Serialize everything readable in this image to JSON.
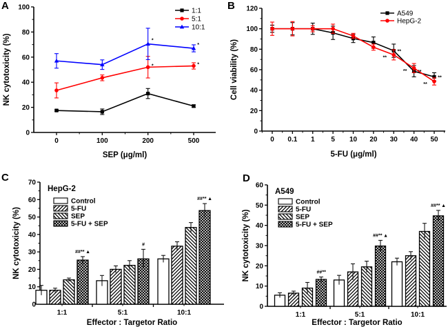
{
  "chart_data": [
    {
      "panel": "A",
      "type": "line",
      "title": "",
      "xlabel": "SEP (μg/ml)",
      "ylabel": "NK cytotoxicity (%)",
      "categories": [
        "0",
        "100",
        "200",
        "500"
      ],
      "ylim": [
        0,
        100
      ],
      "yticks": [
        0,
        20,
        40,
        60,
        80,
        100
      ],
      "legend_position": "top-right",
      "series": [
        {
          "name": "1:1",
          "color": "#000000",
          "marker": "square",
          "values": [
            17.5,
            16.5,
            31,
            21
          ],
          "errors": [
            0.6,
            2.2,
            4,
            1
          ],
          "annotations": [
            "",
            "",
            "",
            ""
          ]
        },
        {
          "name": "5:1",
          "color": "#ff0000",
          "marker": "circle",
          "values": [
            33.5,
            43.5,
            52,
            53
          ],
          "errors": [
            6,
            2.3,
            8.6,
            2.5
          ],
          "annotations": [
            "",
            "",
            "*",
            "*"
          ]
        },
        {
          "name": "10:1",
          "color": "#0000ff",
          "marker": "triangle",
          "values": [
            57,
            54,
            70.5,
            67
          ],
          "errors": [
            5.8,
            3.8,
            12.5,
            2.8
          ],
          "annotations": [
            "",
            "",
            "*",
            "*"
          ]
        }
      ]
    },
    {
      "panel": "B",
      "type": "line",
      "title": "",
      "xlabel": "5-FU (μg/ml)",
      "ylabel": "Cell viability (%)",
      "categories": [
        "0",
        "0.1",
        "1",
        "5",
        "10",
        "20",
        "30",
        "40",
        "50"
      ],
      "ylim": [
        0,
        120
      ],
      "yticks": [
        0,
        20,
        40,
        60,
        80,
        100,
        120
      ],
      "legend_position": "top-right",
      "series": [
        {
          "name": "A549",
          "color": "#000000",
          "marker": "square",
          "values": [
            100,
            100,
            100,
            96,
            90.5,
            86.5,
            78.5,
            58.5,
            53
          ],
          "errors": [
            3.5,
            6,
            5.5,
            6.5,
            4,
            5.5,
            6.5,
            5.5,
            4
          ],
          "annotations": [
            "",
            "",
            "",
            "",
            "",
            "",
            "**",
            "**",
            "**"
          ]
        },
        {
          "name": "HepG-2",
          "color": "#ff0000",
          "marker": "circle",
          "values": [
            100,
            100,
            100,
            100,
            93,
            82,
            74.5,
            61.5,
            48.5
          ],
          "errors": [
            6.5,
            7,
            3,
            4.5,
            2.5,
            3,
            5,
            4.5,
            3.5
          ],
          "annotations": [
            "",
            "",
            "",
            "",
            "",
            "",
            "**",
            "**",
            "**"
          ]
        }
      ]
    },
    {
      "panel": "C",
      "type": "bar",
      "title": "HepG-2",
      "xlabel": "Effector : Targetor Ratio",
      "ylabel": "NK cytotoxicity (%)",
      "categories": [
        "1:1",
        "5:1",
        "10:1"
      ],
      "ylim": [
        0,
        70
      ],
      "yticks": [
        0,
        10,
        20,
        30,
        40,
        50,
        60,
        70
      ],
      "legend_position": "top-left",
      "series": [
        {
          "name": "Control",
          "pattern": "blank",
          "values": [
            8,
            13.5,
            26
          ],
          "errors": [
            2.8,
            3,
            2
          ]
        },
        {
          "name": "5-FU",
          "pattern": "diag-up",
          "values": [
            8,
            20,
            33.3
          ],
          "errors": [
            1.2,
            2,
            2.5
          ]
        },
        {
          "name": "SEP",
          "pattern": "diag-down",
          "values": [
            14,
            22.3,
            44
          ],
          "errors": [
            1,
            2.7,
            2.8
          ]
        },
        {
          "name": "5-FU + SEP",
          "pattern": "crosshatch",
          "values": [
            25.3,
            26,
            53.7
          ],
          "errors": [
            2,
            5.5,
            4
          ],
          "annotations": [
            "##** ▲",
            "#",
            "##** ▲"
          ]
        }
      ]
    },
    {
      "panel": "D",
      "type": "bar",
      "title": "A549",
      "xlabel": "Effector : Targetor Ratio",
      "ylabel": "NK cytotoxicity (%)",
      "categories": [
        "1:1",
        "5:1",
        "10:1"
      ],
      "ylim": [
        0,
        60
      ],
      "yticks": [
        0,
        10,
        20,
        30,
        40,
        50,
        60
      ],
      "legend_position": "top-left",
      "series": [
        {
          "name": "Control",
          "pattern": "blank",
          "values": [
            5.5,
            13,
            22
          ],
          "errors": [
            1.2,
            2.3,
            1.8
          ]
        },
        {
          "name": "5-FU",
          "pattern": "diag-up",
          "values": [
            6.5,
            17,
            25
          ],
          "errors": [
            1,
            4,
            2
          ]
        },
        {
          "name": "SEP",
          "pattern": "diag-down",
          "values": [
            9,
            19.5,
            37
          ],
          "errors": [
            2.8,
            2.8,
            4
          ]
        },
        {
          "name": "5-FU + SEP",
          "pattern": "crosshatch",
          "values": [
            13.3,
            29.8,
            44.7
          ],
          "errors": [
            1.2,
            2.8,
            2.7
          ],
          "annotations": [
            "##**",
            "##** ▲",
            "##** ▲"
          ]
        }
      ]
    }
  ]
}
